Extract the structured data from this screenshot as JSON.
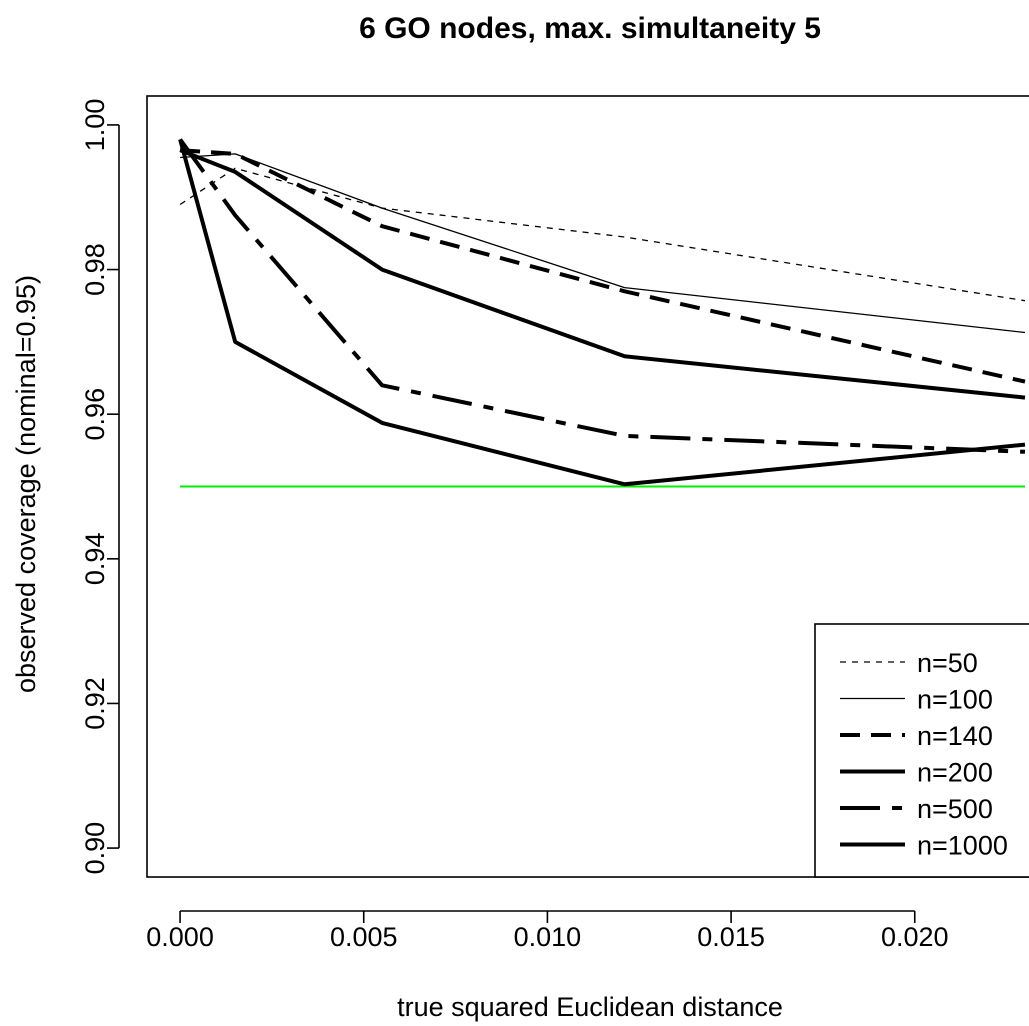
{
  "chart_data": {
    "type": "line",
    "title": "6 GO nodes, max. simultaneity 5",
    "xlabel": "true squared Euclidean distance",
    "ylabel": "observed coverage (nominal=0.95)",
    "xlim": [
      -0.0009,
      0.0236
    ],
    "ylim": [
      0.896,
      1.004
    ],
    "xticks": [
      0.0,
      0.005,
      0.01,
      0.015,
      0.02
    ],
    "xtick_labels": [
      "0.000",
      "0.005",
      "0.010",
      "0.015",
      "0.020"
    ],
    "yticks": [
      0.9,
      0.92,
      0.94,
      0.96,
      0.98,
      1.0
    ],
    "ytick_labels": [
      "0.90",
      "0.92",
      "0.94",
      "0.96",
      "0.98",
      "1.00"
    ],
    "x": [
      0.0,
      0.0015,
      0.0055,
      0.0121,
      0.023
    ],
    "reference_line": {
      "y": 0.95,
      "color": "#00ee00"
    },
    "legend_position": "bottom-right",
    "series": [
      {
        "name": "n=50",
        "values": [
          0.989,
          0.994,
          0.9885,
          0.9845,
          0.9757
        ],
        "dash": "6,6",
        "width": 1.3
      },
      {
        "name": "n=100",
        "values": [
          0.9955,
          0.996,
          0.9885,
          0.9775,
          0.9713
        ],
        "dash": "",
        "width": 1.3
      },
      {
        "name": "n=140",
        "values": [
          0.9965,
          0.996,
          0.986,
          0.977,
          0.9645
        ],
        "dash": "20,11",
        "width": 4
      },
      {
        "name": "n=200",
        "values": [
          0.9965,
          0.9935,
          0.98,
          0.968,
          0.9623
        ],
        "dash": "",
        "width": 4
      },
      {
        "name": "n=500",
        "values": [
          0.998,
          0.9875,
          0.964,
          0.957,
          0.9548
        ],
        "dash": "40,12,10,12",
        "width": 4
      },
      {
        "name": "n=1000",
        "values": [
          0.998,
          0.97,
          0.9588,
          0.9503,
          0.9558
        ],
        "dash": "",
        "width": 4
      }
    ]
  }
}
